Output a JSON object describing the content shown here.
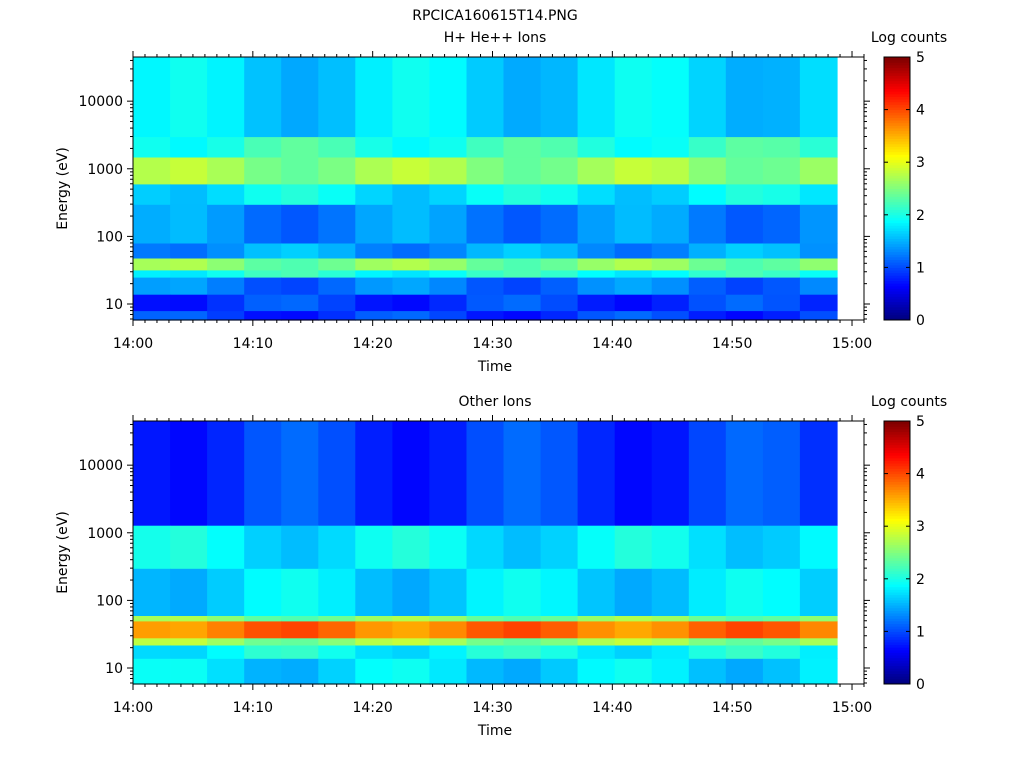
{
  "figure": {
    "title": "RPCICA160615T14.PNG"
  },
  "chart_data": [
    {
      "type": "heatmap",
      "title": "H+ He++ Ions",
      "xlabel": "Time",
      "ylabel": "Energy (eV)",
      "x_ticks": [
        "14:00",
        "14:10",
        "14:20",
        "14:30",
        "14:40",
        "14:50",
        "15:00"
      ],
      "x_range": [
        "14:00",
        "15:01"
      ],
      "y_scale": "log",
      "y_ticks": [
        "10",
        "100",
        "1000",
        "10000"
      ],
      "y_range": [
        5.8,
        45000
      ],
      "colorbar": {
        "label": "Log counts",
        "ticks": [
          "0",
          "1",
          "2",
          "3",
          "4",
          "5"
        ],
        "range": [
          0,
          5
        ],
        "colormap": "jet"
      },
      "columns": 19,
      "time_bins": [
        "14:00",
        "14:03",
        "14:06",
        "14:10",
        "14:13",
        "14:16",
        "14:19",
        "14:22",
        "14:26",
        "14:29",
        "14:32",
        "14:35",
        "14:38",
        "14:42",
        "14:45",
        "14:48",
        "14:51",
        "14:54",
        "14:58"
      ],
      "bands": [
        {
          "energy_eV": [
            5.8,
            8
          ],
          "log_counts": 0.9
        },
        {
          "energy_eV": [
            8,
            14
          ],
          "log_counts": 0.9
        },
        {
          "energy_eV": [
            14,
            25
          ],
          "log_counts": 1.2
        },
        {
          "energy_eV": [
            25,
            32
          ],
          "log_counts": 2.0
        },
        {
          "energy_eV": [
            32,
            48
          ],
          "log_counts": 2.5
        },
        {
          "energy_eV": [
            48,
            80
          ],
          "log_counts": 1.4
        },
        {
          "energy_eV": [
            80,
            300
          ],
          "log_counts": 1.3
        },
        {
          "energy_eV": [
            300,
            600
          ],
          "log_counts": 1.8
        },
        {
          "energy_eV": [
            600,
            1500
          ],
          "log_counts": 2.6
        },
        {
          "energy_eV": [
            1500,
            3000
          ],
          "log_counts": 2.1
        },
        {
          "energy_eV": [
            3000,
            45000
          ],
          "log_counts": 1.7
        }
      ]
    },
    {
      "type": "heatmap",
      "title": "Other Ions",
      "xlabel": "Time",
      "ylabel": "Energy (eV)",
      "x_ticks": [
        "14:00",
        "14:10",
        "14:20",
        "14:30",
        "14:40",
        "14:50",
        "15:00"
      ],
      "x_range": [
        "14:00",
        "15:01"
      ],
      "y_scale": "log",
      "y_ticks": [
        "10",
        "100",
        "1000",
        "10000"
      ],
      "y_range": [
        5.8,
        45000
      ],
      "colorbar": {
        "label": "Log counts",
        "ticks": [
          "0",
          "1",
          "2",
          "3",
          "4",
          "5"
        ],
        "range": [
          0,
          5
        ],
        "colormap": "jet"
      },
      "columns": 19,
      "time_bins": [
        "14:00",
        "14:03",
        "14:06",
        "14:10",
        "14:13",
        "14:16",
        "14:19",
        "14:22",
        "14:26",
        "14:29",
        "14:32",
        "14:35",
        "14:38",
        "14:42",
        "14:45",
        "14:48",
        "14:51",
        "14:54",
        "14:58"
      ],
      "bands": [
        {
          "energy_eV": [
            5.8,
            14
          ],
          "log_counts": 1.7
        },
        {
          "energy_eV": [
            14,
            22
          ],
          "log_counts": 1.9
        },
        {
          "energy_eV": [
            22,
            28
          ],
          "log_counts": 2.6
        },
        {
          "energy_eV": [
            28,
            50
          ],
          "log_counts": 3.8
        },
        {
          "energy_eV": [
            50,
            60
          ],
          "log_counts": 2.5
        },
        {
          "energy_eV": [
            60,
            300
          ],
          "log_counts": 1.7
        },
        {
          "energy_eV": [
            300,
            1300
          ],
          "log_counts": 1.8
        },
        {
          "energy_eV": [
            1300,
            45000
          ],
          "log_counts": 0.9
        }
      ]
    }
  ]
}
